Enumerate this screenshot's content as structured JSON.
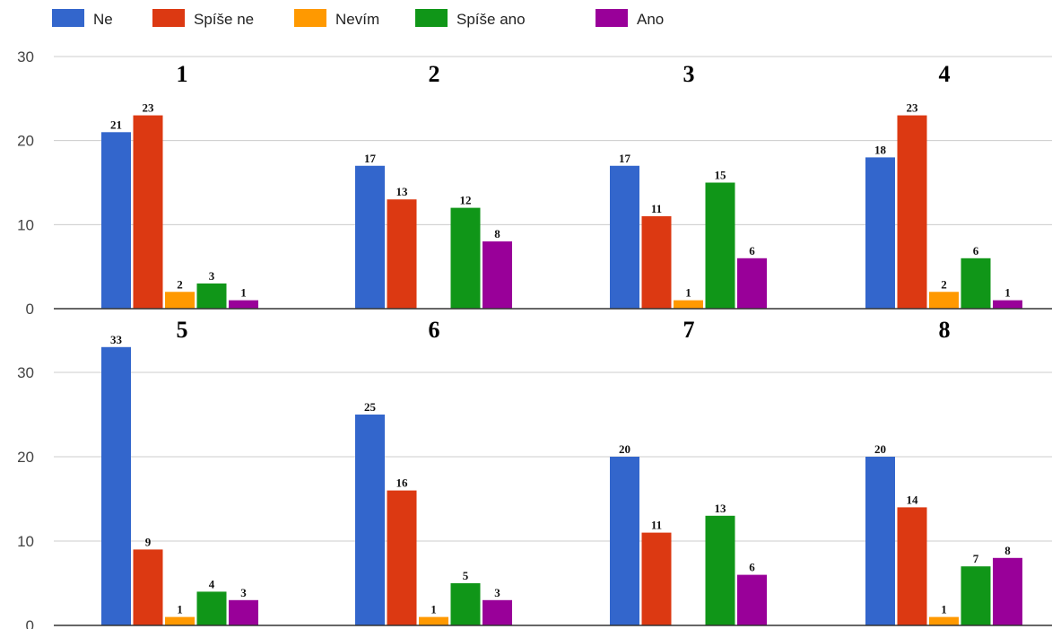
{
  "chart_data": {
    "type": "bar",
    "series": [
      {
        "name": "Ne",
        "color": "#3366cc"
      },
      {
        "name": "Spíše ne",
        "color": "#dc3912"
      },
      {
        "name": "Nevím",
        "color": "#ff9900"
      },
      {
        "name": "Spíše ano",
        "color": "#109618"
      },
      {
        "name": "Ano",
        "color": "#990099"
      }
    ],
    "yticks": [
      0,
      10,
      20,
      30
    ],
    "ylim": [
      0,
      30
    ],
    "grid": true,
    "legend_position": "top-left",
    "rows": [
      {
        "panels": [
          {
            "title": "1",
            "values": [
              21,
              23,
              2,
              3,
              1
            ]
          },
          {
            "title": "2",
            "values": [
              17,
              13,
              null,
              12,
              8
            ]
          },
          {
            "title": "3",
            "values": [
              17,
              11,
              1,
              15,
              6
            ]
          },
          {
            "title": "4",
            "values": [
              18,
              23,
              2,
              6,
              1
            ]
          }
        ]
      },
      {
        "panels": [
          {
            "title": "5",
            "values": [
              33,
              9,
              1,
              4,
              3
            ]
          },
          {
            "title": "6",
            "values": [
              25,
              16,
              1,
              5,
              3
            ]
          },
          {
            "title": "7",
            "values": [
              20,
              11,
              null,
              13,
              6
            ]
          },
          {
            "title": "8",
            "values": [
              20,
              14,
              1,
              7,
              8
            ]
          }
        ]
      }
    ]
  }
}
